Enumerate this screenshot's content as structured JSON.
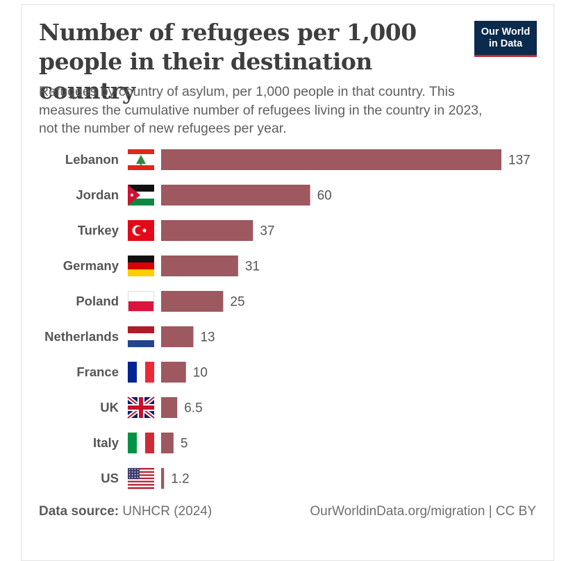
{
  "logo": {
    "line1": "Our World",
    "line2": "in Data"
  },
  "chart_data": {
    "type": "bar",
    "orientation": "horizontal",
    "title": "Number of refugees per 1,000 people in their destination country",
    "subtitle": "Refugees by country of asylum, per 1,000 people in that country. This measures the cumulative number of refugees living in the country in 2023, not the number of new refugees per year.",
    "categories": [
      "Lebanon",
      "Jordan",
      "Turkey",
      "Germany",
      "Poland",
      "Netherlands",
      "France",
      "UK",
      "Italy",
      "US"
    ],
    "values": [
      137,
      60,
      37,
      31,
      25,
      13,
      10,
      6.5,
      5,
      1.2
    ],
    "value_labels": [
      "137",
      "60",
      "37",
      "31",
      "25",
      "13",
      "10",
      "6.5",
      "5",
      "1.2"
    ],
    "flags": [
      "flag-lebanon",
      "flag-jordan",
      "flag-turkey",
      "flag-germany",
      "flag-poland",
      "flag-netherlands",
      "flag-france",
      "flag-uk",
      "flag-italy",
      "flag-us"
    ],
    "xlim": [
      0,
      137
    ],
    "bar_color": "#9e5860",
    "grid": false
  },
  "footer": {
    "source_label": "Data source:",
    "source_value": "UNHCR (2024)",
    "link": "OurWorldinData.org/migration | CC BY"
  }
}
